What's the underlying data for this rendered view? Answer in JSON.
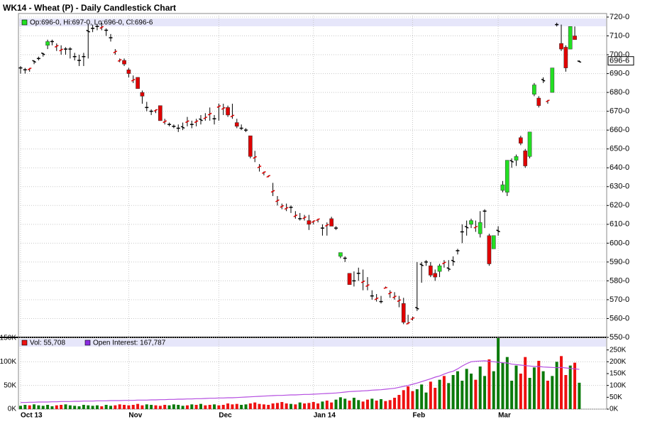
{
  "chart_data": {
    "type": "candlestick",
    "title": "WK14 - Wheat (P) - Daily Candlestick Chart",
    "legend_price": "Op:696-0, Hi:697-0, Lo:696-0, Cl:696-6",
    "legend_volume": "Vol: 55,708",
    "legend_oi": "Open Interest: 167,787",
    "up_color": "#22e022",
    "down_color": "#e00000",
    "volume_up_color": "#0b7a0b",
    "volume_down_color": "#ee1111",
    "oi_color": "#b44ce0",
    "grid": true,
    "ylim": [
      550,
      720
    ],
    "yticks": [
      {
        "value": 550,
        "label": "550-0"
      },
      {
        "value": 560,
        "label": "560-0"
      },
      {
        "value": 570,
        "label": "570-0"
      },
      {
        "value": 580,
        "label": "580-0"
      },
      {
        "value": 590,
        "label": "590-0"
      },
      {
        "value": 600,
        "label": "600-0"
      },
      {
        "value": 610,
        "label": "610-0"
      },
      {
        "value": 620,
        "label": "620-0"
      },
      {
        "value": 630,
        "label": "630-0"
      },
      {
        "value": 640,
        "label": "640-0"
      },
      {
        "value": 650,
        "label": "650-0"
      },
      {
        "value": 660,
        "label": "660-0"
      },
      {
        "value": 670,
        "label": "670-0"
      },
      {
        "value": 680,
        "label": "680-0"
      },
      {
        "value": 690,
        "label": "690-0"
      },
      {
        "value": 700,
        "label": "700-0"
      },
      {
        "value": 710,
        "label": "710-0"
      },
      {
        "value": 720,
        "label": "720-0"
      }
    ],
    "last_price": {
      "value": 696.75,
      "label": "696-6"
    },
    "xticks": [
      {
        "value": 0,
        "label": "Oct 13"
      },
      {
        "value": 24,
        "label": "Nov"
      },
      {
        "value": 44,
        "label": "Dec"
      },
      {
        "value": 65,
        "label": "Jan 14"
      },
      {
        "value": 87,
        "label": "Feb"
      },
      {
        "value": 106,
        "label": "Mar"
      }
    ],
    "candles": [
      [
        693,
        694,
        690,
        693
      ],
      [
        692,
        693,
        690,
        692
      ],
      [
        693,
        693,
        691,
        692
      ],
      [
        696,
        697,
        695,
        697
      ],
      [
        698,
        699,
        697,
        698
      ],
      [
        700,
        701,
        699,
        701
      ],
      [
        705,
        708,
        703,
        707
      ],
      [
        707,
        708,
        705,
        707
      ],
      [
        705,
        706,
        702,
        704
      ],
      [
        703,
        705,
        700,
        702
      ],
      [
        703,
        704,
        700,
        703
      ],
      [
        703,
        704,
        698,
        703
      ],
      [
        699,
        701,
        697,
        699
      ],
      [
        697,
        700,
        694,
        697
      ],
      [
        699,
        701,
        694,
        699
      ],
      [
        712,
        716,
        698,
        713
      ],
      [
        714,
        716,
        712,
        714
      ],
      [
        715,
        716,
        713,
        715
      ],
      [
        715,
        717,
        713,
        714
      ],
      [
        713,
        714,
        710,
        713
      ],
      [
        709,
        711,
        707,
        709
      ],
      [
        702,
        703,
        700,
        701
      ],
      [
        697.5,
        698,
        696,
        696.5
      ],
      [
        697,
        698,
        694,
        695
      ],
      [
        692,
        693,
        688,
        690
      ],
      [
        687,
        689,
        685,
        686
      ],
      [
        688,
        688,
        682,
        682
      ],
      [
        680,
        681,
        674,
        678
      ],
      [
        672,
        675,
        670,
        672
      ],
      [
        670,
        671,
        668,
        670
      ],
      [
        671,
        671,
        669,
        670
      ],
      [
        673,
        673,
        665,
        665
      ],
      [
        665,
        666,
        663,
        664
      ],
      [
        663,
        664,
        662,
        663
      ],
      [
        662,
        663,
        661,
        662
      ],
      [
        661,
        663,
        659,
        661
      ],
      [
        661,
        664,
        660,
        662
      ],
      [
        665,
        667,
        662,
        664
      ],
      [
        663,
        665,
        661,
        663
      ],
      [
        665,
        666,
        662,
        664
      ],
      [
        665,
        668,
        663,
        666
      ],
      [
        667,
        669,
        665,
        666
      ],
      [
        669,
        672,
        665,
        668
      ],
      [
        666,
        668,
        663,
        666
      ],
      [
        673,
        674,
        665,
        672
      ],
      [
        672,
        674,
        668,
        671
      ],
      [
        672,
        673,
        667,
        668
      ],
      [
        668,
        674,
        666,
        667
      ],
      [
        664,
        666,
        661,
        662
      ],
      [
        661,
        663,
        660,
        661
      ],
      [
        660,
        661,
        659,
        660
      ],
      [
        657,
        657,
        645,
        646
      ],
      [
        646,
        649,
        643,
        645
      ],
      [
        641,
        642,
        638,
        640
      ],
      [
        638,
        638,
        636,
        637
      ],
      [
        636,
        636,
        635,
        635
      ],
      [
        628,
        632,
        625,
        627
      ],
      [
        623,
        625,
        620,
        622
      ],
      [
        620,
        621,
        618,
        619
      ],
      [
        619,
        621,
        617,
        618
      ],
      [
        619,
        620,
        616,
        619
      ],
      [
        615,
        617,
        613,
        614
      ],
      [
        613,
        616,
        612,
        613
      ],
      [
        614,
        615,
        612,
        613
      ],
      [
        612,
        615,
        607,
        610
      ],
      [
        612,
        612,
        610,
        611
      ],
      [
        613,
        613,
        611,
        612
      ],
      [
        608,
        610,
        604,
        608
      ],
      [
        610,
        611,
        604,
        609
      ],
      [
        613,
        614,
        609,
        609
      ],
      [
        608,
        609,
        607,
        608
      ],
      [
        593,
        595,
        592,
        595
      ],
      [
        592,
        593,
        590,
        592
      ],
      [
        584,
        584,
        578,
        578
      ],
      [
        580,
        585,
        577,
        580
      ],
      [
        584,
        587,
        580,
        584
      ],
      [
        580,
        586,
        575,
        579
      ],
      [
        578,
        582,
        575,
        577
      ],
      [
        572,
        575,
        570,
        572
      ],
      [
        571,
        573,
        569,
        570
      ],
      [
        569,
        572,
        568,
        569
      ],
      [
        576.5,
        577,
        576,
        576
      ],
      [
        574,
        575,
        571,
        573
      ],
      [
        572,
        574,
        570,
        571
      ],
      [
        570,
        572,
        566,
        569
      ],
      [
        568,
        571,
        557,
        558
      ],
      [
        558,
        562,
        557,
        557
      ],
      [
        560.5,
        561,
        559,
        559.5
      ],
      [
        565,
        590,
        564,
        566
      ],
      [
        588,
        590,
        579,
        589
      ],
      [
        590,
        591,
        588,
        590
      ],
      [
        588,
        590,
        582,
        583
      ],
      [
        584,
        586,
        580,
        582
      ],
      [
        585,
        589,
        582,
        588
      ],
      [
        590,
        591,
        587,
        589
      ],
      [
        586,
        591,
        585,
        587
      ],
      [
        590,
        593,
        588,
        591
      ],
      [
        596,
        597,
        594,
        596
      ],
      [
        606,
        610,
        600,
        606
      ],
      [
        608,
        612,
        604,
        609
      ],
      [
        610,
        613,
        608,
        612
      ],
      [
        609,
        612,
        606,
        608
      ],
      [
        605,
        617,
        603,
        611
      ],
      [
        617,
        618,
        608,
        617
      ],
      [
        604,
        605,
        588,
        589
      ],
      [
        597,
        604,
        597,
        604
      ],
      [
        606,
        609,
        604,
        607
      ],
      [
        628,
        633,
        627,
        631
      ],
      [
        627,
        644,
        625,
        644
      ],
      [
        643,
        645,
        640,
        644
      ],
      [
        644,
        647,
        641,
        646
      ],
      [
        656,
        657,
        652,
        653
      ],
      [
        649,
        650,
        640,
        641
      ],
      [
        646,
        659,
        645,
        659
      ],
      [
        679,
        685,
        678,
        684
      ],
      [
        677,
        678,
        672,
        673
      ],
      [
        686,
        688,
        685,
        687
      ],
      [
        676,
        676,
        674,
        675
      ],
      [
        680,
        693,
        680,
        693
      ],
      [
        716,
        717,
        715,
        716
      ],
      [
        706,
        716,
        702,
        703
      ],
      [
        704,
        705,
        691,
        693
      ],
      [
        703,
        715,
        703,
        715
      ],
      [
        710,
        715,
        708,
        708
      ],
      [
        696,
        697,
        696,
        696.75
      ]
    ],
    "volume_lim": [
      0,
      150
    ],
    "volume_ticks": [
      {
        "value": 0,
        "label": "0K"
      },
      {
        "value": 50,
        "label": "50K"
      },
      {
        "value": 100,
        "label": "100K"
      },
      {
        "value": 150,
        "label": "150K"
      }
    ],
    "volume": [
      7,
      9,
      8,
      10,
      8,
      7,
      9,
      6,
      8,
      9,
      10,
      8,
      7,
      6,
      9,
      8,
      7,
      8,
      6,
      9,
      7,
      8,
      10,
      9,
      8,
      9,
      11,
      8,
      10,
      9,
      8,
      7,
      9,
      8,
      10,
      9,
      7,
      8,
      10,
      9,
      11,
      8,
      9,
      10,
      8,
      9,
      12,
      10,
      11,
      9,
      10,
      12,
      14,
      11,
      10,
      9,
      12,
      13,
      15,
      12,
      11,
      10,
      14,
      12,
      13,
      15,
      12,
      16,
      18,
      14,
      20,
      25,
      22,
      18,
      24,
      19,
      16,
      20,
      22,
      18,
      21,
      17,
      19,
      24,
      30,
      40,
      48,
      38,
      42,
      52,
      35,
      58,
      45,
      62,
      70,
      55,
      72,
      80,
      60,
      85,
      75,
      62,
      90,
      70,
      105,
      80,
      150,
      98,
      110,
      60,
      92,
      75,
      110,
      66,
      88,
      102,
      80,
      60,
      70,
      100,
      112,
      72,
      92,
      98,
      55.708
    ],
    "oi_lim": [
      0,
      300
    ],
    "oi_ticks": [
      {
        "value": 0,
        "label": "0K"
      },
      {
        "value": 50,
        "label": "50K"
      },
      {
        "value": 100,
        "label": "100K"
      },
      {
        "value": 150,
        "label": "150K"
      },
      {
        "value": 200,
        "label": "200K"
      },
      {
        "value": 250,
        "label": "250K"
      }
    ],
    "open_interest": [
      28,
      28,
      29,
      29,
      30,
      30,
      30,
      31,
      31,
      32,
      32,
      32,
      33,
      33,
      34,
      34,
      34,
      35,
      35,
      35,
      36,
      36,
      36,
      37,
      37,
      37,
      38,
      38,
      38,
      39,
      39,
      40,
      40,
      41,
      41,
      42,
      42,
      43,
      43,
      44,
      44,
      45,
      46,
      46,
      47,
      47,
      48,
      48,
      49,
      50,
      51,
      52,
      53,
      54,
      55,
      56,
      57,
      58,
      58,
      59,
      60,
      60,
      61,
      62,
      62,
      63,
      64,
      65,
      66,
      67,
      68,
      70,
      72,
      74,
      75,
      76,
      77,
      78,
      80,
      81,
      82,
      84,
      86,
      88,
      92,
      96,
      100,
      105,
      110,
      116,
      122,
      128,
      135,
      140,
      148,
      155,
      160,
      170,
      182,
      192,
      200,
      202,
      203,
      204,
      202,
      200,
      198,
      196,
      195,
      190,
      188,
      186,
      184,
      182,
      180,
      180,
      178,
      177,
      176,
      175,
      176,
      174,
      172,
      170,
      167.787
    ]
  }
}
